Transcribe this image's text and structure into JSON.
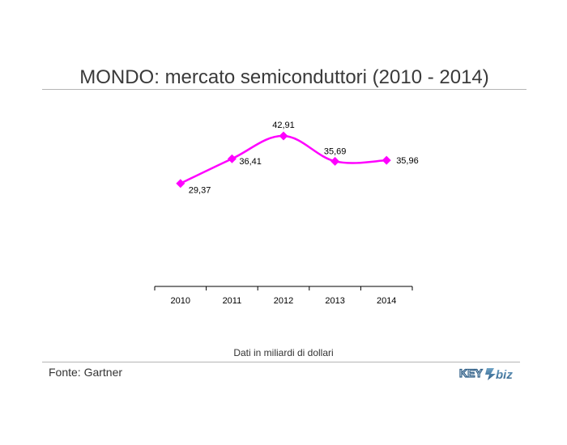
{
  "title": "MONDO: mercato semiconduttori (2010 - 2014)",
  "note": "Dati in miliardi di dollari",
  "source": "Fonte: Gartner",
  "logo": {
    "text_left": "KEY",
    "text_right": "biz"
  },
  "colors": {
    "series": "#ff00ff",
    "axis": "#000000",
    "rule": "#b5b5b5"
  },
  "chart_data": {
    "type": "line",
    "categories": [
      "2010",
      "2011",
      "2012",
      "2013",
      "2014"
    ],
    "series": [
      {
        "values": [
          29.37,
          36.41,
          42.91,
          35.69,
          35.96
        ],
        "labels": [
          "29,37",
          "36,41",
          "42,91",
          "35,69",
          "35,96"
        ],
        "marker": "diamond",
        "smooth": true
      }
    ],
    "ylim": [
      0,
      54
    ],
    "grid": false,
    "legend": "none"
  }
}
